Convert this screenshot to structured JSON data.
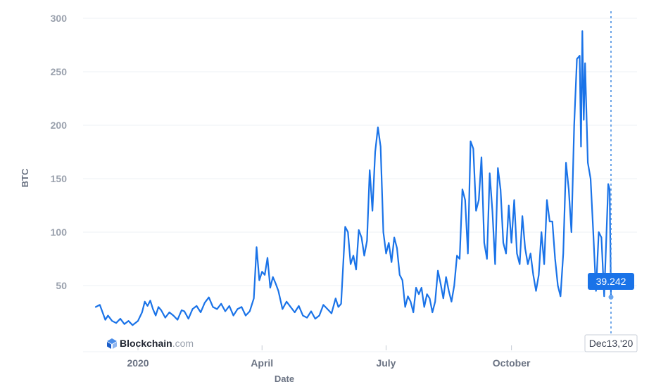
{
  "chart_data": {
    "type": "line",
    "xlabel": "Date",
    "ylabel": "BTC",
    "ylim": [
      0,
      300
    ],
    "yticks": [
      50,
      100,
      150,
      200,
      250,
      300
    ],
    "x_start": "2019-12-01",
    "x_end": "2020-12-13",
    "xticks": [
      {
        "date": "2020-01-01",
        "label": "2020"
      },
      {
        "date": "2020-04-01",
        "label": "April"
      },
      {
        "date": "2020-07-01",
        "label": "July"
      },
      {
        "date": "2020-10-01",
        "label": "October"
      }
    ],
    "grid": true,
    "color": "#1a73e8",
    "series": [
      {
        "name": "",
        "points": [
          [
            "2019-12-01",
            30
          ],
          [
            "2019-12-04",
            32
          ],
          [
            "2019-12-06",
            25
          ],
          [
            "2019-12-08",
            18
          ],
          [
            "2019-12-10",
            22
          ],
          [
            "2019-12-13",
            17
          ],
          [
            "2019-12-16",
            15
          ],
          [
            "2019-12-19",
            19
          ],
          [
            "2019-12-22",
            14
          ],
          [
            "2019-12-25",
            17
          ],
          [
            "2019-12-28",
            13
          ],
          [
            "2020-01-01",
            17
          ],
          [
            "2020-01-04",
            25
          ],
          [
            "2020-01-06",
            35
          ],
          [
            "2020-01-08",
            31
          ],
          [
            "2020-01-10",
            36
          ],
          [
            "2020-01-12",
            28
          ],
          [
            "2020-01-14",
            22
          ],
          [
            "2020-01-16",
            30
          ],
          [
            "2020-01-18",
            27
          ],
          [
            "2020-01-21",
            20
          ],
          [
            "2020-01-24",
            25
          ],
          [
            "2020-01-27",
            22
          ],
          [
            "2020-01-30",
            18
          ],
          [
            "2020-02-02",
            27
          ],
          [
            "2020-02-04",
            26
          ],
          [
            "2020-02-07",
            19
          ],
          [
            "2020-02-10",
            28
          ],
          [
            "2020-02-13",
            31
          ],
          [
            "2020-02-16",
            25
          ],
          [
            "2020-02-19",
            34
          ],
          [
            "2020-02-22",
            39
          ],
          [
            "2020-02-25",
            30
          ],
          [
            "2020-02-28",
            28
          ],
          [
            "2020-03-02",
            33
          ],
          [
            "2020-03-05",
            26
          ],
          [
            "2020-03-08",
            31
          ],
          [
            "2020-03-11",
            22
          ],
          [
            "2020-03-14",
            28
          ],
          [
            "2020-03-17",
            30
          ],
          [
            "2020-03-20",
            22
          ],
          [
            "2020-03-23",
            26
          ],
          [
            "2020-03-26",
            38
          ],
          [
            "2020-03-28",
            86
          ],
          [
            "2020-03-30",
            55
          ],
          [
            "2020-04-01",
            63
          ],
          [
            "2020-04-03",
            60
          ],
          [
            "2020-04-05",
            76
          ],
          [
            "2020-04-07",
            48
          ],
          [
            "2020-04-09",
            58
          ],
          [
            "2020-04-11",
            52
          ],
          [
            "2020-04-13",
            45
          ],
          [
            "2020-04-16",
            28
          ],
          [
            "2020-04-19",
            35
          ],
          [
            "2020-04-22",
            30
          ],
          [
            "2020-04-25",
            25
          ],
          [
            "2020-04-28",
            31
          ],
          [
            "2020-05-01",
            22
          ],
          [
            "2020-05-04",
            20
          ],
          [
            "2020-05-07",
            26
          ],
          [
            "2020-05-10",
            19
          ],
          [
            "2020-05-13",
            22
          ],
          [
            "2020-05-16",
            32
          ],
          [
            "2020-05-19",
            28
          ],
          [
            "2020-05-22",
            24
          ],
          [
            "2020-05-25",
            38
          ],
          [
            "2020-05-27",
            30
          ],
          [
            "2020-05-29",
            33
          ],
          [
            "2020-06-01",
            105
          ],
          [
            "2020-06-03",
            100
          ],
          [
            "2020-06-05",
            70
          ],
          [
            "2020-06-07",
            78
          ],
          [
            "2020-06-09",
            65
          ],
          [
            "2020-06-11",
            102
          ],
          [
            "2020-06-13",
            95
          ],
          [
            "2020-06-15",
            78
          ],
          [
            "2020-06-17",
            92
          ],
          [
            "2020-06-19",
            158
          ],
          [
            "2020-06-21",
            120
          ],
          [
            "2020-06-23",
            175
          ],
          [
            "2020-06-25",
            198
          ],
          [
            "2020-06-27",
            180
          ],
          [
            "2020-06-29",
            100
          ],
          [
            "2020-07-01",
            80
          ],
          [
            "2020-07-03",
            90
          ],
          [
            "2020-07-05",
            72
          ],
          [
            "2020-07-07",
            95
          ],
          [
            "2020-07-09",
            85
          ],
          [
            "2020-07-11",
            60
          ],
          [
            "2020-07-13",
            55
          ],
          [
            "2020-07-15",
            30
          ],
          [
            "2020-07-17",
            40
          ],
          [
            "2020-07-19",
            35
          ],
          [
            "2020-07-21",
            25
          ],
          [
            "2020-07-23",
            48
          ],
          [
            "2020-07-25",
            42
          ],
          [
            "2020-07-27",
            48
          ],
          [
            "2020-07-29",
            30
          ],
          [
            "2020-07-31",
            42
          ],
          [
            "2020-08-02",
            38
          ],
          [
            "2020-08-04",
            25
          ],
          [
            "2020-08-06",
            35
          ],
          [
            "2020-08-08",
            64
          ],
          [
            "2020-08-10",
            52
          ],
          [
            "2020-08-12",
            38
          ],
          [
            "2020-08-14",
            58
          ],
          [
            "2020-08-16",
            45
          ],
          [
            "2020-08-18",
            35
          ],
          [
            "2020-08-20",
            50
          ],
          [
            "2020-08-22",
            78
          ],
          [
            "2020-08-24",
            75
          ],
          [
            "2020-08-26",
            140
          ],
          [
            "2020-08-28",
            130
          ],
          [
            "2020-08-30",
            80
          ],
          [
            "2020-09-01",
            185
          ],
          [
            "2020-09-03",
            178
          ],
          [
            "2020-09-05",
            120
          ],
          [
            "2020-09-07",
            130
          ],
          [
            "2020-09-09",
            170
          ],
          [
            "2020-09-11",
            90
          ],
          [
            "2020-09-13",
            75
          ],
          [
            "2020-09-15",
            155
          ],
          [
            "2020-09-17",
            120
          ],
          [
            "2020-09-19",
            70
          ],
          [
            "2020-09-21",
            160
          ],
          [
            "2020-09-23",
            140
          ],
          [
            "2020-09-25",
            90
          ],
          [
            "2020-09-27",
            80
          ],
          [
            "2020-09-29",
            125
          ],
          [
            "2020-10-01",
            90
          ],
          [
            "2020-10-03",
            130
          ],
          [
            "2020-10-05",
            80
          ],
          [
            "2020-10-07",
            70
          ],
          [
            "2020-10-09",
            115
          ],
          [
            "2020-10-11",
            85
          ],
          [
            "2020-10-13",
            70
          ],
          [
            "2020-10-15",
            80
          ],
          [
            "2020-10-17",
            60
          ],
          [
            "2020-10-19",
            45
          ],
          [
            "2020-10-21",
            60
          ],
          [
            "2020-10-23",
            100
          ],
          [
            "2020-10-25",
            70
          ],
          [
            "2020-10-27",
            130
          ],
          [
            "2020-10-29",
            110
          ],
          [
            "2020-10-31",
            110
          ],
          [
            "2020-11-02",
            75
          ],
          [
            "2020-11-04",
            50
          ],
          [
            "2020-11-06",
            40
          ],
          [
            "2020-11-08",
            80
          ],
          [
            "2020-11-10",
            165
          ],
          [
            "2020-11-12",
            140
          ],
          [
            "2020-11-14",
            100
          ],
          [
            "2020-11-16",
            200
          ],
          [
            "2020-11-18",
            262
          ],
          [
            "2020-11-20",
            265
          ],
          [
            "2020-11-21",
            180
          ],
          [
            "2020-11-22",
            288
          ],
          [
            "2020-11-23",
            205
          ],
          [
            "2020-11-24",
            258
          ],
          [
            "2020-11-26",
            165
          ],
          [
            "2020-11-28",
            150
          ],
          [
            "2020-11-30",
            100
          ],
          [
            "2020-12-02",
            45
          ],
          [
            "2020-12-04",
            100
          ],
          [
            "2020-12-06",
            95
          ],
          [
            "2020-12-08",
            40
          ],
          [
            "2020-12-09",
            75
          ],
          [
            "2020-12-11",
            145
          ],
          [
            "2020-12-12",
            140
          ],
          [
            "2020-12-13",
            39.242
          ]
        ]
      }
    ],
    "tooltip": {
      "value": "39.242",
      "date_label": "Dec13,'20"
    },
    "brand": {
      "name": "Blockchain",
      "suffix": ".com"
    }
  }
}
